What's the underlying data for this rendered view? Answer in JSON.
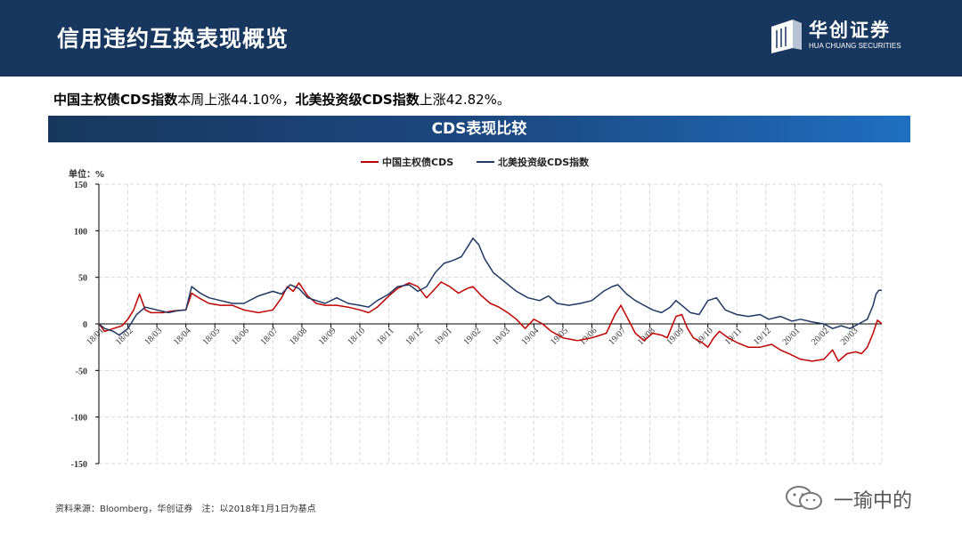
{
  "header": {
    "title": "信用违约互换表现概览",
    "logo_name": "华创证券",
    "logo_sub": "HUA CHUANG SECURITIES",
    "bg_color": "#17375e"
  },
  "summary": {
    "part1_bold": "中国主权债CDS指数",
    "part1_text": "本周上涨44.10%，",
    "part2_bold": "北美投资级CDS指数",
    "part2_text": "上涨42.82%。"
  },
  "chart_title": "CDS表现比较",
  "chart_data": {
    "type": "line",
    "unit_label": "单位：%",
    "ylim": [
      -150,
      150
    ],
    "yticks": [
      150,
      100,
      50,
      0,
      -50,
      -100,
      -150
    ],
    "xticks": [
      "18/01",
      "18/02",
      "18/03",
      "18/04",
      "18/05",
      "18/06",
      "18/07",
      "18/08",
      "18/09",
      "18/10",
      "18/11",
      "18/12",
      "19/01",
      "19/02",
      "19/03",
      "19/04",
      "19/05",
      "19/06",
      "19/07",
      "19/08",
      "19/09",
      "19/10",
      "19/11",
      "19/12",
      "20/01",
      "20/02",
      "20/03"
    ],
    "grid": true,
    "legend_position": "top",
    "series": [
      {
        "name": "中国主权债CDS",
        "color": "#c00000",
        "points": [
          [
            0,
            0
          ],
          [
            0.2,
            -8
          ],
          [
            0.5,
            -5
          ],
          [
            0.8,
            -2
          ],
          [
            1.0,
            5
          ],
          [
            1.2,
            15
          ],
          [
            1.4,
            32
          ],
          [
            1.6,
            15
          ],
          [
            1.8,
            12
          ],
          [
            2.2,
            12
          ],
          [
            2.6,
            14
          ],
          [
            3.0,
            15
          ],
          [
            3.2,
            33
          ],
          [
            3.5,
            27
          ],
          [
            3.8,
            22
          ],
          [
            4.2,
            20
          ],
          [
            4.6,
            20
          ],
          [
            5.0,
            15
          ],
          [
            5.5,
            12
          ],
          [
            6.0,
            15
          ],
          [
            6.3,
            28
          ],
          [
            6.5,
            40
          ],
          [
            6.7,
            35
          ],
          [
            6.9,
            44
          ],
          [
            7.2,
            30
          ],
          [
            7.5,
            22
          ],
          [
            7.8,
            20
          ],
          [
            8.2,
            20
          ],
          [
            8.6,
            18
          ],
          [
            9.0,
            15
          ],
          [
            9.3,
            12
          ],
          [
            9.6,
            18
          ],
          [
            10.0,
            30
          ],
          [
            10.3,
            38
          ],
          [
            10.7,
            44
          ],
          [
            11.0,
            40
          ],
          [
            11.3,
            28
          ],
          [
            11.6,
            38
          ],
          [
            11.8,
            45
          ],
          [
            12.1,
            40
          ],
          [
            12.4,
            33
          ],
          [
            12.7,
            38
          ],
          [
            12.9,
            40
          ],
          [
            13.2,
            30
          ],
          [
            13.5,
            22
          ],
          [
            13.8,
            18
          ],
          [
            14.1,
            12
          ],
          [
            14.4,
            5
          ],
          [
            14.7,
            -5
          ],
          [
            15.0,
            5
          ],
          [
            15.3,
            0
          ],
          [
            15.6,
            -8
          ],
          [
            16.0,
            -15
          ],
          [
            16.5,
            -18
          ],
          [
            17.0,
            -15
          ],
          [
            17.5,
            -10
          ],
          [
            17.8,
            10
          ],
          [
            18.0,
            20
          ],
          [
            18.2,
            8
          ],
          [
            18.5,
            -10
          ],
          [
            18.8,
            -18
          ],
          [
            19.1,
            -10
          ],
          [
            19.4,
            -12
          ],
          [
            19.6,
            -15
          ],
          [
            19.9,
            8
          ],
          [
            20.1,
            10
          ],
          [
            20.3,
            -5
          ],
          [
            20.5,
            -15
          ],
          [
            20.8,
            -20
          ],
          [
            21.0,
            -25
          ],
          [
            21.2,
            -15
          ],
          [
            21.4,
            -8
          ],
          [
            21.7,
            -15
          ],
          [
            22.0,
            -20
          ],
          [
            22.4,
            -25
          ],
          [
            22.8,
            -25
          ],
          [
            23.2,
            -22
          ],
          [
            23.5,
            -28
          ],
          [
            23.8,
            -32
          ],
          [
            24.2,
            -38
          ],
          [
            24.6,
            -40
          ],
          [
            25.0,
            -38
          ],
          [
            25.3,
            -28
          ],
          [
            25.5,
            -40
          ],
          [
            25.8,
            -32
          ],
          [
            26.1,
            -30
          ],
          [
            26.3,
            -32
          ],
          [
            26.5,
            -25
          ],
          [
            26.7,
            -10
          ],
          [
            26.85,
            4
          ],
          [
            27.0,
            0
          ]
        ]
      },
      {
        "name": "北美投资级CDS指数",
        "color": "#1f3864",
        "points": [
          [
            0,
            0
          ],
          [
            0.2,
            -5
          ],
          [
            0.5,
            -8
          ],
          [
            0.7,
            -12
          ],
          [
            1.0,
            -5
          ],
          [
            1.3,
            10
          ],
          [
            1.6,
            18
          ],
          [
            2.0,
            15
          ],
          [
            2.4,
            12
          ],
          [
            2.7,
            14
          ],
          [
            3.0,
            15
          ],
          [
            3.2,
            40
          ],
          [
            3.5,
            33
          ],
          [
            3.8,
            28
          ],
          [
            4.2,
            25
          ],
          [
            4.6,
            22
          ],
          [
            5.0,
            22
          ],
          [
            5.5,
            30
          ],
          [
            6.0,
            35
          ],
          [
            6.3,
            32
          ],
          [
            6.6,
            42
          ],
          [
            6.9,
            38
          ],
          [
            7.2,
            28
          ],
          [
            7.5,
            25
          ],
          [
            7.8,
            22
          ],
          [
            8.2,
            28
          ],
          [
            8.6,
            22
          ],
          [
            9.0,
            20
          ],
          [
            9.3,
            18
          ],
          [
            9.6,
            25
          ],
          [
            10.0,
            32
          ],
          [
            10.3,
            40
          ],
          [
            10.7,
            42
          ],
          [
            11.0,
            35
          ],
          [
            11.3,
            40
          ],
          [
            11.6,
            55
          ],
          [
            11.9,
            65
          ],
          [
            12.2,
            68
          ],
          [
            12.5,
            72
          ],
          [
            12.7,
            82
          ],
          [
            12.9,
            92
          ],
          [
            13.1,
            85
          ],
          [
            13.3,
            70
          ],
          [
            13.6,
            55
          ],
          [
            14.0,
            45
          ],
          [
            14.4,
            35
          ],
          [
            14.8,
            28
          ],
          [
            15.2,
            25
          ],
          [
            15.5,
            30
          ],
          [
            15.8,
            22
          ],
          [
            16.2,
            20
          ],
          [
            16.6,
            22
          ],
          [
            17.0,
            25
          ],
          [
            17.4,
            35
          ],
          [
            17.7,
            40
          ],
          [
            17.9,
            42
          ],
          [
            18.2,
            32
          ],
          [
            18.5,
            25
          ],
          [
            18.8,
            20
          ],
          [
            19.1,
            15
          ],
          [
            19.4,
            12
          ],
          [
            19.7,
            18
          ],
          [
            19.9,
            25
          ],
          [
            20.1,
            20
          ],
          [
            20.4,
            12
          ],
          [
            20.7,
            10
          ],
          [
            21.0,
            25
          ],
          [
            21.3,
            28
          ],
          [
            21.6,
            15
          ],
          [
            22.0,
            10
          ],
          [
            22.4,
            8
          ],
          [
            22.8,
            10
          ],
          [
            23.1,
            5
          ],
          [
            23.5,
            8
          ],
          [
            23.9,
            3
          ],
          [
            24.2,
            5
          ],
          [
            24.6,
            2
          ],
          [
            25.0,
            0
          ],
          [
            25.3,
            -5
          ],
          [
            25.6,
            -2
          ],
          [
            25.9,
            -5
          ],
          [
            26.2,
            0
          ],
          [
            26.5,
            5
          ],
          [
            26.7,
            20
          ],
          [
            26.8,
            32
          ],
          [
            26.9,
            36
          ],
          [
            27.0,
            36
          ]
        ]
      }
    ]
  },
  "footer": {
    "source": "资料来源：Bloomberg，华创证券　注：以2018年1月1日为基点"
  },
  "watermark": {
    "text": "一瑜中的"
  }
}
